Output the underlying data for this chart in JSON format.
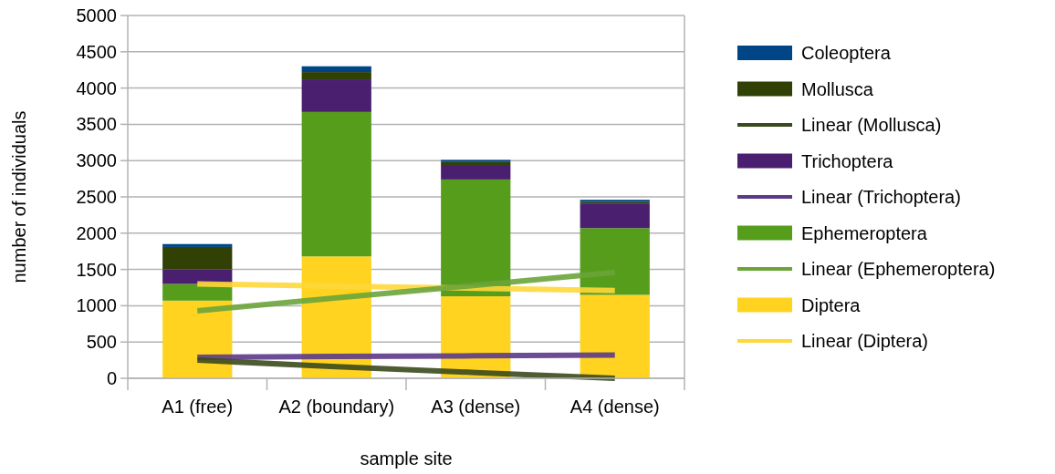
{
  "chart_data": {
    "type": "bar",
    "stacked": true,
    "xlabel": "sample site",
    "ylabel": "number of individuals",
    "categories": [
      "A1 (free)",
      "A2 (boundary)",
      "A3 (dense)",
      "A4 (dense)"
    ],
    "series": [
      {
        "name": "Linear (Diptera)",
        "type": "line",
        "color": "#ffd83a",
        "values": [
          1300,
          1270,
          1240,
          1210
        ]
      },
      {
        "name": "Diptera",
        "color": "#ffd320",
        "values": [
          1070,
          1680,
          1130,
          1150
        ]
      },
      {
        "name": "Linear (Ephemeroptera)",
        "type": "line",
        "color": "#6aa43a",
        "values": [
          930,
          1110,
          1280,
          1460
        ]
      },
      {
        "name": "Ephemeroptera",
        "color": "#579d1c",
        "values": [
          230,
          1990,
          1610,
          920
        ]
      },
      {
        "name": "Linear (Trichoptera)",
        "type": "line",
        "color": "#5c3a8a",
        "values": [
          290,
          300,
          310,
          320
        ]
      },
      {
        "name": "Trichoptera",
        "color": "#4b1f6f",
        "values": [
          200,
          450,
          200,
          340
        ]
      },
      {
        "name": "Linear (Mollusca)",
        "type": "line",
        "color": "#3b4a1e",
        "values": [
          250,
          160,
          80,
          0
        ]
      },
      {
        "name": "Mollusca",
        "color": "#314004",
        "values": [
          310,
          100,
          40,
          20
        ]
      },
      {
        "name": "Coleoptera",
        "color": "#004586",
        "values": [
          40,
          80,
          30,
          30
        ]
      }
    ],
    "ylim": [
      0,
      5000
    ],
    "yticks": [
      0,
      500,
      1000,
      1500,
      2000,
      2500,
      3000,
      3500,
      4000,
      4500,
      5000
    ],
    "grid": "y",
    "legend": "right"
  }
}
